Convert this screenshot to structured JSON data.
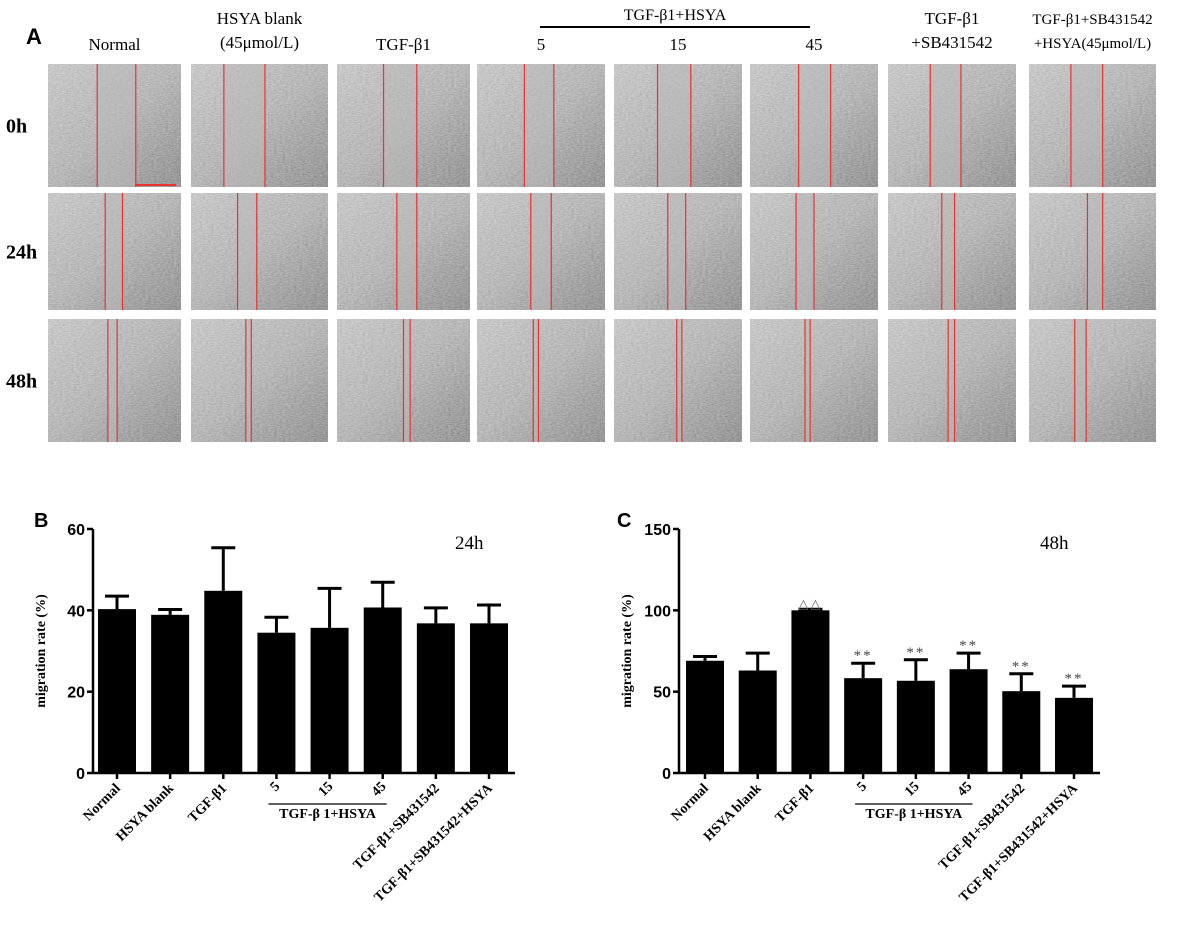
{
  "panel_a": {
    "letter": "A",
    "columns": [
      "Normal",
      "HSYA blank\n(45μmol/L)",
      "TGF-β1",
      "5",
      "15",
      "45",
      "TGF-β1\n+SB431542",
      "TGF-β1+SB431542\n+HSYA(45μmol/L)"
    ],
    "group_label": "TGF-β1+HSYA",
    "rows": [
      "0h",
      "24h",
      "48h"
    ],
    "wound_edge_color": "#e8332f"
  },
  "chart_data": [
    {
      "panel": "B",
      "type": "bar",
      "title": "24h",
      "ylabel": "migration rate (%)",
      "ylim": [
        0,
        60
      ],
      "yticks": [
        0,
        20,
        40,
        60
      ],
      "categories": [
        "Normal",
        "HSYA blank",
        "TGF-β1",
        "5",
        "15",
        "45",
        "TGF-β1+SB431542",
        "TGF-β1+SB431542+HSYA"
      ],
      "group_label": "TGF-β  1+HSYA",
      "values": [
        40.3,
        38.9,
        44.8,
        34.5,
        35.7,
        40.7,
        36.8,
        36.8
      ],
      "error_upper": [
        43.5,
        40.2,
        55.4,
        38.3,
        45.4,
        46.9,
        40.6,
        41.3
      ],
      "annotations": [
        "",
        "",
        "",
        "",
        "",
        "",
        "",
        ""
      ],
      "bar_color": "#000000",
      "grid": false
    },
    {
      "panel": "C",
      "type": "bar",
      "title": "48h",
      "ylabel": "migration rate (%)",
      "ylim": [
        0,
        150
      ],
      "yticks": [
        0,
        50,
        100,
        150
      ],
      "categories": [
        "Normal",
        "HSYA blank",
        "TGF-β1",
        "5",
        "15",
        "45",
        "TGF-β1+SB431542",
        "TGF-β1+SB431542+HSYA"
      ],
      "group_label": "TGF-β  1+HSYA",
      "values": [
        69.0,
        63.0,
        100.0,
        58.3,
        56.7,
        63.8,
        50.3,
        46.2
      ],
      "error_upper": [
        71.6,
        73.7,
        100.7,
        67.5,
        69.6,
        73.7,
        61.0,
        53.4
      ],
      "annotations": [
        "",
        "",
        "△△",
        "**",
        "**",
        "**",
        "**",
        "**"
      ],
      "bar_color": "#000000",
      "grid": false
    }
  ]
}
